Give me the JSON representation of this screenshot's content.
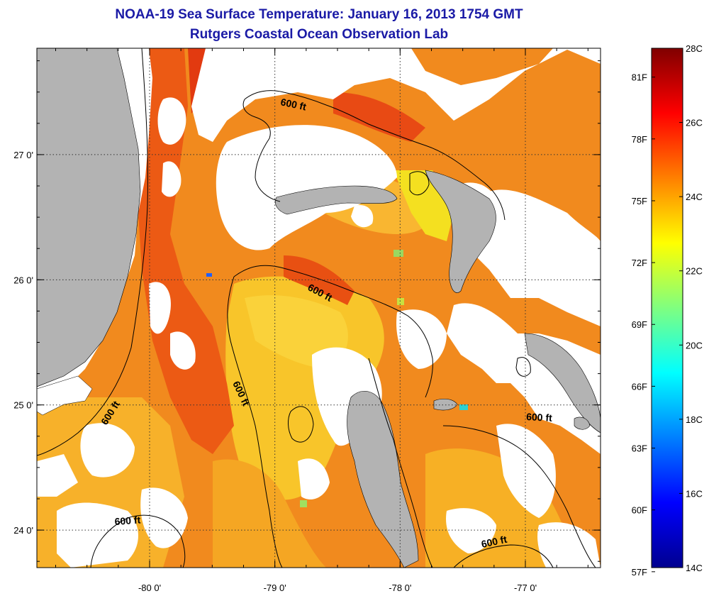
{
  "header": {
    "title": "NOAA-19 Sea Surface Temperature:  January 16, 2013 1754 GMT",
    "subtitle": "Rutgers Coastal Ocean Observation Lab"
  },
  "map": {
    "x_ticks": [
      {
        "lon": -80,
        "label": "-80 0'"
      },
      {
        "lon": -79,
        "label": "-79 0'"
      },
      {
        "lon": -78,
        "label": "-78 0'"
      },
      {
        "lon": -77,
        "label": "-77 0'"
      }
    ],
    "y_ticks": [
      {
        "lat": 27,
        "label": "27 0'"
      },
      {
        "lat": 26,
        "label": "26 0'"
      },
      {
        "lat": 25,
        "label": "25 0'"
      },
      {
        "lat": 24,
        "label": "24 0'"
      }
    ],
    "lon_range": [
      -80.9,
      -76.4
    ],
    "lat_range": [
      23.7,
      27.85
    ],
    "grid": true,
    "contour_label": "600 ft",
    "colors": {
      "land": "#b3b3b3",
      "cloud": "#ffffff",
      "warm": "#f07818",
      "cool": "#f8d020",
      "hot": "#d81c0c"
    }
  },
  "colorbar": {
    "celsius": [
      "28C",
      "26C",
      "24C",
      "22C",
      "20C",
      "18C",
      "16C",
      "14C"
    ],
    "fahrenheit": [
      "81F",
      "78F",
      "75F",
      "72F",
      "69F",
      "66F",
      "63F",
      "60F",
      "57F"
    ],
    "c_range": [
      14,
      28
    ]
  }
}
